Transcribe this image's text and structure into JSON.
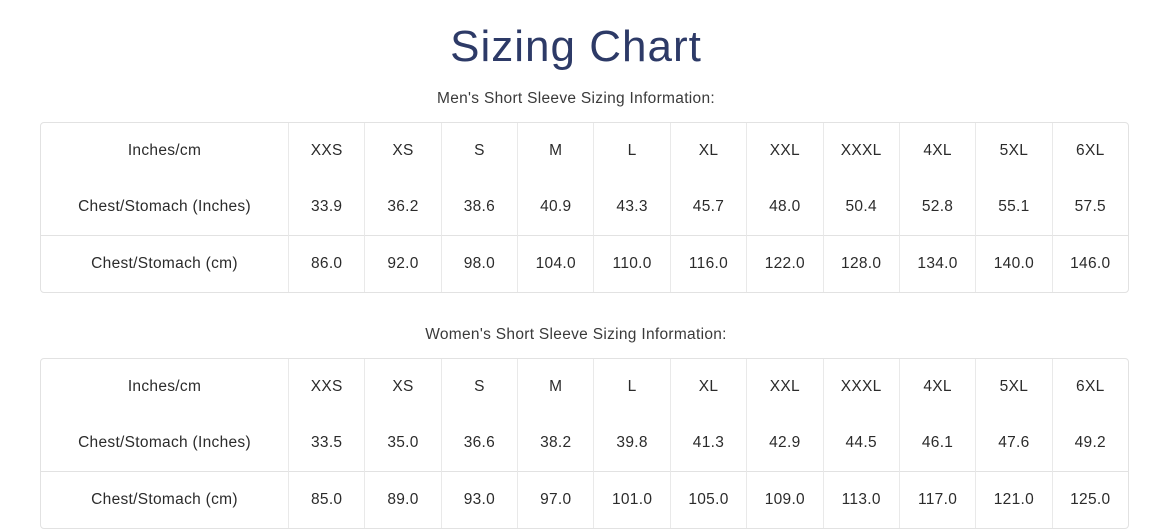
{
  "page": {
    "title": "Sizing Chart",
    "title_color": "#2d3a67",
    "border_color": "#e2e2e2",
    "text_color": "#2b2b2b"
  },
  "tables": [
    {
      "caption": "Men's Short Sleeve Sizing Information:",
      "header": [
        "Inches/cm",
        "XXS",
        "XS",
        "S",
        "M",
        "L",
        "XL",
        "XXL",
        "XXXL",
        "4XL",
        "5XL",
        "6XL"
      ],
      "rows": [
        {
          "label": "Chest/Stomach (Inches)",
          "values": [
            "33.9",
            "36.2",
            "38.6",
            "40.9",
            "43.3",
            "45.7",
            "48.0",
            "50.4",
            "52.8",
            "55.1",
            "57.5"
          ]
        },
        {
          "label": "Chest/Stomach (cm)",
          "values": [
            "86.0",
            "92.0",
            "98.0",
            "104.0",
            "110.0",
            "116.0",
            "122.0",
            "128.0",
            "134.0",
            "140.0",
            "146.0"
          ]
        }
      ]
    },
    {
      "caption": "Women's Short Sleeve Sizing Information:",
      "header": [
        "Inches/cm",
        "XXS",
        "XS",
        "S",
        "M",
        "L",
        "XL",
        "XXL",
        "XXXL",
        "4XL",
        "5XL",
        "6XL"
      ],
      "rows": [
        {
          "label": "Chest/Stomach (Inches)",
          "values": [
            "33.5",
            "35.0",
            "36.6",
            "38.2",
            "39.8",
            "41.3",
            "42.9",
            "44.5",
            "46.1",
            "47.6",
            "49.2"
          ]
        },
        {
          "label": "Chest/Stomach (cm)",
          "values": [
            "85.0",
            "89.0",
            "93.0",
            "97.0",
            "101.0",
            "105.0",
            "109.0",
            "113.0",
            "117.0",
            "121.0",
            "125.0"
          ]
        }
      ]
    }
  ]
}
